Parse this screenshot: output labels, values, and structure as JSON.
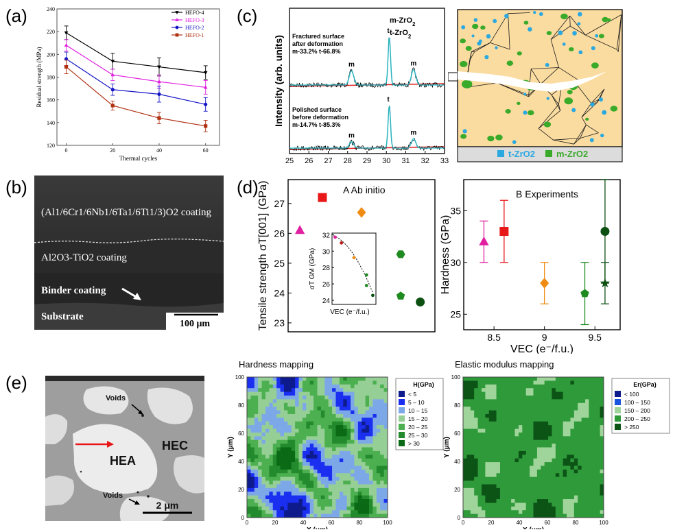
{
  "panels": {
    "a": {
      "tag": "(a)"
    },
    "b": {
      "tag": "(b)"
    },
    "c": {
      "tag": "(c)"
    },
    "d": {
      "tag": "(d)"
    },
    "e": {
      "tag": "(e)"
    }
  },
  "chart_data": [
    {
      "id": "a",
      "type": "line",
      "xlabel": "Thermal cycles",
      "ylabel": "Residual strength (MPa)",
      "x": [
        0,
        20,
        40,
        60
      ],
      "xlim": [
        -4,
        66
      ],
      "ylim": [
        120,
        240
      ],
      "xticks": [
        0,
        20,
        40,
        60
      ],
      "yticks": [
        120,
        140,
        160,
        180,
        200,
        220,
        240
      ],
      "legend_position": "top-right",
      "series": [
        {
          "name": "HEFO-4",
          "color": "#000000",
          "marker": "triangle-down",
          "values": [
            219,
            194,
            189,
            184
          ],
          "errors": [
            6,
            7,
            8,
            6
          ]
        },
        {
          "name": "HEFO-3",
          "color": "#e020e0",
          "marker": "triangle-up",
          "values": [
            208,
            182,
            176,
            171
          ],
          "errors": [
            5,
            5,
            6,
            6
          ]
        },
        {
          "name": "HEFO-2",
          "color": "#1515c8",
          "marker": "circle",
          "values": [
            196,
            169,
            165,
            156
          ],
          "errors": [
            6,
            5,
            7,
            6
          ]
        },
        {
          "name": "HEFO-1",
          "color": "#b03010",
          "marker": "square",
          "values": [
            189,
            155,
            144,
            137
          ],
          "errors": [
            6,
            4,
            5,
            5
          ]
        }
      ]
    },
    {
      "id": "c",
      "type": "line",
      "ylabel": "Intensity (arb. units)",
      "xticks": [
        25,
        26,
        27,
        28,
        29,
        30,
        31,
        32,
        33
      ],
      "xlim": [
        25,
        33
      ],
      "legend": [
        "m-ZrO2",
        "t-ZrO2"
      ],
      "annotations": [
        {
          "lines": [
            "Fractured surface",
            "after deformation",
            "m-33.2%  t-66.8%"
          ]
        },
        {
          "lines": [
            "Polished surface",
            "before deformation",
            "m-14.7%  t-85.3%"
          ]
        }
      ],
      "peak_labels": [
        {
          "label": "m",
          "x": 28.2,
          "trace": "top"
        },
        {
          "label": "t",
          "x": 30.1,
          "trace": "top"
        },
        {
          "label": "m",
          "x": 31.4,
          "trace": "top"
        },
        {
          "label": "m",
          "x": 28.2,
          "trace": "bottom"
        },
        {
          "label": "t",
          "x": 30.1,
          "trace": "bottom"
        },
        {
          "label": "m",
          "x": 31.4,
          "trace": "bottom"
        }
      ],
      "series": [
        {
          "name": "Fractured surface",
          "peaks": [
            {
              "x": 28.2,
              "h": 0.3
            },
            {
              "x": 30.15,
              "h": 1.0
            },
            {
              "x": 31.4,
              "h": 0.32
            }
          ]
        },
        {
          "name": "Polished surface",
          "peaks": [
            {
              "x": 28.2,
              "h": 0.15
            },
            {
              "x": 30.15,
              "h": 1.0
            },
            {
              "x": 31.4,
              "h": 0.22
            }
          ]
        }
      ]
    },
    {
      "id": "dA",
      "type": "scatter",
      "title": "A  Ab initio",
      "ylabel": "Tensile strength σT[001] (GPa)",
      "ylim": [
        22.7,
        27.8
      ],
      "xlim": [
        8.25,
        9.75
      ],
      "yticks": [
        23,
        24,
        25,
        26,
        27
      ],
      "points": [
        {
          "x": 8.37,
          "y": 26.1,
          "marker": "triangle",
          "color": "#e020a0"
        },
        {
          "x": 8.6,
          "y": 27.2,
          "marker": "square",
          "color": "#e81818"
        },
        {
          "x": 9.0,
          "y": 26.7,
          "marker": "diamond",
          "color": "#f08c14"
        },
        {
          "x": 9.4,
          "y": 25.3,
          "marker": "hexagon",
          "color": "#1f8a20"
        },
        {
          "x": 9.4,
          "y": 23.9,
          "marker": "pentagon",
          "color": "#1f8a20"
        },
        {
          "x": 9.6,
          "y": 23.7,
          "marker": "circle",
          "color": "#0c5012"
        }
      ],
      "inset": {
        "xlabel": "VEC (e⁻/f.u.)",
        "ylabel": "σT GM (GPa)",
        "yticks": [
          24,
          26,
          28,
          30,
          32
        ],
        "ylim": [
          23.5,
          32.2
        ],
        "xlim": [
          8.3,
          9.7
        ],
        "points": [
          {
            "x": 8.4,
            "y": 31.7,
            "color": "#e020a0"
          },
          {
            "x": 8.6,
            "y": 31.0,
            "color": "#c01818"
          },
          {
            "x": 9.0,
            "y": 29.2,
            "color": "#f08c14"
          },
          {
            "x": 9.4,
            "y": 27.1,
            "color": "#1f8a20"
          },
          {
            "x": 9.4,
            "y": 25.8,
            "color": "#1f8a20"
          },
          {
            "x": 9.6,
            "y": 24.6,
            "color": "#0c5012"
          }
        ]
      }
    },
    {
      "id": "dB",
      "type": "scatter",
      "title": "B  Experiments",
      "xlabel": "VEC (e⁻/f.u.)",
      "ylabel": "Hardness (GPa)",
      "xlim": [
        8.2,
        9.75
      ],
      "ylim": [
        23.5,
        38
      ],
      "xticks": [
        8.5,
        9,
        9.5
      ],
      "yticks": [
        25,
        30,
        35
      ],
      "points": [
        {
          "x": 8.4,
          "y": 32.0,
          "err": 2.0,
          "marker": "triangle",
          "color": "#e020a0"
        },
        {
          "x": 8.6,
          "y": 33.0,
          "err": 3.0,
          "marker": "square",
          "color": "#e81818"
        },
        {
          "x": 9.0,
          "y": 28.0,
          "err": 2.0,
          "marker": "diamond",
          "color": "#f08c14"
        },
        {
          "x": 9.4,
          "y": 27.0,
          "err": 3.0,
          "marker": "pentagon",
          "color": "#1f8a20"
        },
        {
          "x": 9.6,
          "y": 33.0,
          "err": 5.0,
          "marker": "circle",
          "color": "#0c5012"
        },
        {
          "x": 9.6,
          "y": 28.0,
          "err": 2.0,
          "marker": "star",
          "color": "#0c5012"
        }
      ]
    },
    {
      "id": "e-hardness",
      "type": "heatmap",
      "title": "Hardness mapping",
      "xlabel": "X (μm)",
      "ylabel": "Y (μm)",
      "xticks": [
        0,
        20,
        40,
        60,
        80,
        100
      ],
      "yticks": [
        0,
        20,
        40,
        60,
        80,
        100
      ],
      "legend_title": "H(GPa)",
      "legend": [
        {
          "label": "<   5",
          "color": "#0d1b8c"
        },
        {
          "label": "5  –  10",
          "color": "#1a2ff0"
        },
        {
          "label": "10  –  15",
          "color": "#7da8e8"
        },
        {
          "label": "15  –  20",
          "color": "#96cf96"
        },
        {
          "label": "20  –  25",
          "color": "#4caf50"
        },
        {
          "label": "25  –  30",
          "color": "#238b2d"
        },
        {
          "label": ">  30",
          "color": "#0a6a15"
        }
      ]
    },
    {
      "id": "e-modulus",
      "type": "heatmap",
      "title": "Elastic modulus mapping",
      "xlabel": "X (μm)",
      "ylabel": "Y (μm)",
      "xticks": [
        0,
        20,
        40,
        60,
        80,
        100
      ],
      "yticks": [
        0,
        20,
        40,
        60,
        80,
        100
      ],
      "legend_title": "Er(GPa)",
      "legend": [
        {
          "label": "<   100",
          "color": "#0d1b8c"
        },
        {
          "label": "100  –  150",
          "color": "#1a55e0"
        },
        {
          "label": "150  –  200",
          "color": "#9fd49a"
        },
        {
          "label": "200  –  250",
          "color": "#2e9a3a"
        },
        {
          "label": ">  250",
          "color": "#0c5416"
        }
      ]
    }
  ],
  "micrograph_b": {
    "coating_top": "(Al1/6Cr1/6Nb1/6Ta1/6Ti1/3)O2 coating",
    "coating_mid": "Al2O3-TiO2 coating",
    "binder": "Binder coating",
    "substrate": "Substrate",
    "scale": "100 μm"
  },
  "schematic_c": {
    "legend_t": "t-ZrO2",
    "legend_m": "m-ZrO2",
    "color_t": "#2aa8e0",
    "color_m": "#3aaa2a",
    "background": "#fbdca0"
  },
  "micrograph_e": {
    "voids_top": "Voids",
    "voids_bottom": "Voids",
    "hea": "HEA",
    "hec": "HEC",
    "scale": "2 μm"
  }
}
